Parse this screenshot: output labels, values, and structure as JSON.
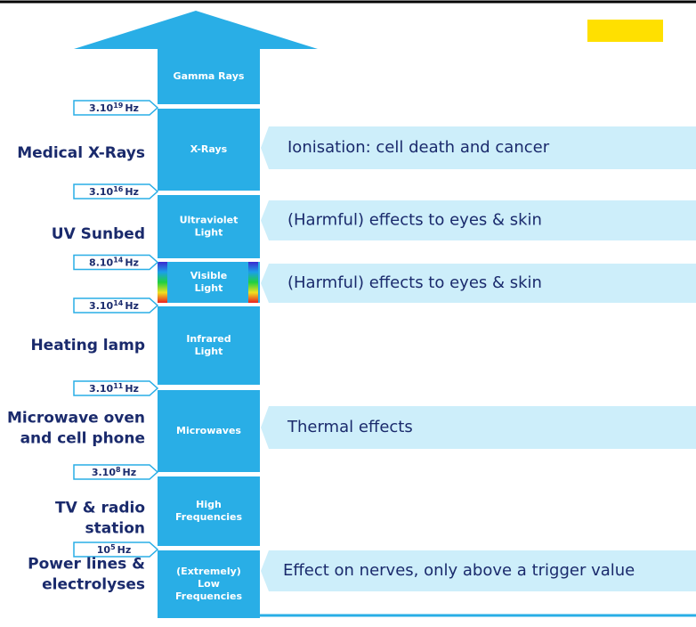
{
  "bands": [
    {
      "label": [
        "Gamma Rays"
      ]
    },
    {
      "label": [
        "X-Rays"
      ]
    },
    {
      "label": [
        "Ultraviolet",
        "Light"
      ]
    },
    {
      "label": [
        "Visible",
        "Light"
      ]
    },
    {
      "label": [
        "Infrared",
        "Light"
      ]
    },
    {
      "label": [
        "Microwaves"
      ]
    },
    {
      "label": [
        "High",
        "Frequencies"
      ]
    },
    {
      "label": [
        "(Extremely)",
        "Low",
        "Frequencies"
      ]
    }
  ],
  "frequencies": [
    {
      "base": "3.10",
      "exp": "19",
      "unit": "Hz"
    },
    {
      "base": "3.10",
      "exp": "16",
      "unit": "Hz"
    },
    {
      "base": "8.10",
      "exp": "14",
      "unit": "Hz"
    },
    {
      "base": "3.10",
      "exp": "14",
      "unit": "Hz"
    },
    {
      "base": "3.10",
      "exp": "11",
      "unit": "Hz"
    },
    {
      "base": "3.10",
      "exp": "8",
      "unit": "Hz"
    },
    {
      "base": "10",
      "exp": "5",
      "unit": "Hz"
    }
  ],
  "sources": [
    {
      "lines": [
        "Medical X-Rays"
      ]
    },
    {
      "lines": [
        "UV Sunbed"
      ]
    },
    {
      "lines": [
        "Heating lamp"
      ]
    },
    {
      "lines": [
        "Microwave oven",
        "and cell phone"
      ]
    },
    {
      "lines": [
        "TV & radio",
        "station"
      ]
    },
    {
      "lines": [
        "Power lines &",
        "electrolyses"
      ]
    }
  ],
  "effects": [
    "Ionisation: cell death and cancer",
    "(Harmful) effects to eyes & skin",
    "(Harmful) effects to eyes & skin",
    "Thermal effects",
    "Effect on nerves, only above a trigger value"
  ]
}
